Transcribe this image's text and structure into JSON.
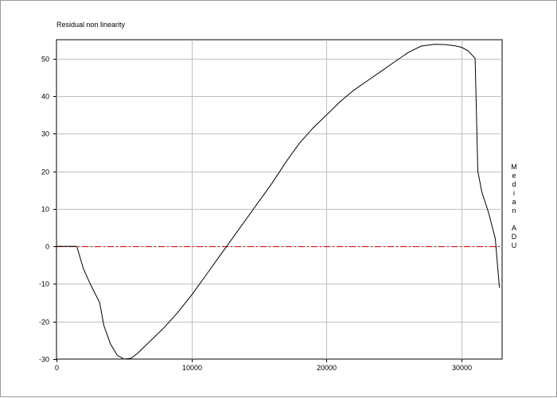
{
  "chart_data": {
    "type": "line",
    "title": "Residual non linearity",
    "xlabel": "",
    "ylabel": "Median ADU",
    "xlim": [
      0,
      33000
    ],
    "ylim": [
      -30,
      55
    ],
    "xticks": [
      0,
      10000,
      20000,
      30000
    ],
    "yticks": [
      -30,
      -20,
      -10,
      0,
      10,
      20,
      30,
      40,
      50
    ],
    "grid": true,
    "series": [
      {
        "color": "#000000",
        "x": [
          0,
          1500,
          2000,
          2500,
          3200,
          3500,
          4000,
          4500,
          5000,
          5500,
          6000,
          7000,
          8000,
          9000,
          10000,
          11000,
          12000,
          13000,
          13500,
          14000,
          15000,
          16000,
          17000,
          18000,
          19000,
          20000,
          21000,
          22000,
          23000,
          24000,
          25000,
          26000,
          27000,
          28000,
          28800,
          29500,
          30000,
          30500,
          31000,
          31200,
          31500,
          32000,
          32500,
          32800
        ],
        "y": [
          0,
          0,
          -6,
          -10,
          -15,
          -21,
          -26,
          -29,
          -30,
          -29.8,
          -28.5,
          -25,
          -21.5,
          -17.5,
          -13,
          -8,
          -3,
          2,
          4.5,
          7,
          12,
          17,
          22.5,
          27.5,
          31.5,
          35,
          38.5,
          41.5,
          44,
          46.5,
          49,
          51.5,
          53.3,
          53.8,
          53.7,
          53.4,
          53,
          52,
          50,
          20,
          14.5,
          9,
          2,
          -11
        ]
      }
    ],
    "reference_line": {
      "y": 0,
      "color": "#cc0000",
      "style": "dash-dot"
    }
  }
}
